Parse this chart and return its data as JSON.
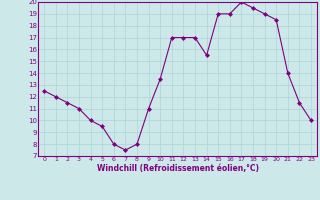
{
  "x": [
    0,
    1,
    2,
    3,
    4,
    5,
    6,
    7,
    8,
    9,
    10,
    11,
    12,
    13,
    14,
    15,
    16,
    17,
    18,
    19,
    20,
    21,
    22,
    23
  ],
  "y": [
    12.5,
    12.0,
    11.5,
    11.0,
    10.0,
    9.5,
    8.0,
    7.5,
    8.0,
    11.0,
    13.5,
    17.0,
    17.0,
    17.0,
    15.5,
    19.0,
    19.0,
    20.0,
    19.5,
    19.0,
    18.5,
    14.0,
    11.5,
    10.0
  ],
  "xlabel": "Windchill (Refroidissement éolien,°C)",
  "ylim": [
    7,
    20
  ],
  "xlim": [
    -0.5,
    23.5
  ],
  "yticks": [
    7,
    8,
    9,
    10,
    11,
    12,
    13,
    14,
    15,
    16,
    17,
    18,
    19,
    20
  ],
  "xticks": [
    0,
    1,
    2,
    3,
    4,
    5,
    6,
    7,
    8,
    9,
    10,
    11,
    12,
    13,
    14,
    15,
    16,
    17,
    18,
    19,
    20,
    21,
    22,
    23
  ],
  "line_color": "#800080",
  "marker_color": "#800080",
  "bg_color": "#cce8e8",
  "grid_color": "#b0d8d8",
  "axis_label_color": "#800080",
  "tick_label_color": "#800080",
  "spine_color": "#800080"
}
